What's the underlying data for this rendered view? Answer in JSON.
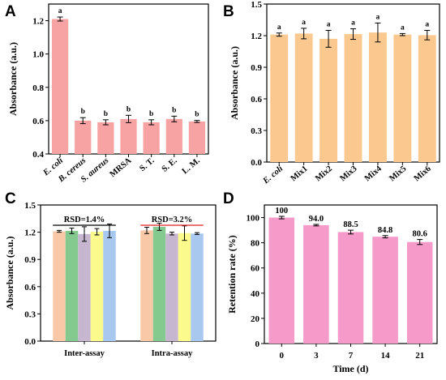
{
  "chart_data": [
    {
      "panel": "A",
      "type": "bar",
      "ylabel": "Absorbance (a.u.)",
      "ylim": [
        0.4,
        1.3
      ],
      "yticks": [
        "0.4",
        "0.6",
        "0.8",
        "1.0",
        "1.2"
      ],
      "categories": [
        "E. coli",
        "B. cereus",
        "S. aureus",
        "MRSA",
        "S. T.",
        "S. E.",
        "L. M."
      ],
      "italic_categories": [
        true,
        true,
        true,
        false,
        false,
        false,
        false
      ],
      "values": [
        1.21,
        0.6,
        0.59,
        0.61,
        0.59,
        0.61,
        0.595
      ],
      "errors": [
        0.012,
        0.018,
        0.015,
        0.022,
        0.015,
        0.017,
        0.006
      ],
      "significance": [
        "a",
        "b",
        "b",
        "b",
        "b",
        "b",
        "b"
      ],
      "color": "#f7a3a3",
      "grid": false
    },
    {
      "panel": "B",
      "type": "bar",
      "ylabel": "Absorbance (a.u.)",
      "ylim": [
        0.0,
        1.5
      ],
      "yticks": [
        "0.0",
        "0.3",
        "0.6",
        "0.9",
        "1.2",
        "1.5"
      ],
      "categories": [
        "E. coli",
        "Mix1",
        "Mix2",
        "Mix3",
        "Mix4",
        "Mix5",
        "Mix6"
      ],
      "italic_categories": [
        true,
        false,
        false,
        false,
        false,
        false,
        false
      ],
      "values": [
        1.21,
        1.22,
        1.17,
        1.215,
        1.23,
        1.21,
        1.205
      ],
      "errors": [
        0.015,
        0.05,
        0.08,
        0.05,
        0.09,
        0.01,
        0.045
      ],
      "significance": [
        "a",
        "a",
        "a",
        "a",
        "a",
        "a",
        "a"
      ],
      "color": "#fbc98f",
      "grid": false
    },
    {
      "panel": "C",
      "type": "bar",
      "ylabel": "Absorbance (a.u.)",
      "ylim": [
        0.0,
        1.5
      ],
      "yticks": [
        "0.0",
        "0.3",
        "0.6",
        "0.9",
        "1.2",
        "1.5"
      ],
      "categories": [
        "Inter-assay",
        "Intra-assay"
      ],
      "series": [
        {
          "values": [
            1.21,
            1.22
          ],
          "errors": [
            0.01,
            0.035
          ],
          "color": "#f9c8a6"
        },
        {
          "values": [
            1.215,
            1.26
          ],
          "errors": [
            0.03,
            0.04
          ],
          "color": "#84c98d"
        },
        {
          "values": [
            1.18,
            1.185
          ],
          "errors": [
            0.08,
            0.015
          ],
          "color": "#c6b6cf"
        },
        {
          "values": [
            1.205,
            1.19
          ],
          "errors": [
            0.035,
            0.08
          ],
          "color": "#fbfb8d"
        },
        {
          "values": [
            1.215,
            1.185
          ],
          "errors": [
            0.075,
            0.01
          ],
          "color": "#a9c8f0"
        }
      ],
      "annotations": [
        {
          "text": "RSD=1.4%",
          "line_color": "#000000"
        },
        {
          "text": "RSD=3.2%",
          "line_color": "#e02020"
        }
      ],
      "grid": false
    },
    {
      "panel": "D",
      "type": "bar",
      "xlabel": "Time (d)",
      "ylabel": "Retention rate (%)",
      "ylim": [
        0,
        110
      ],
      "yticks": [
        "0",
        "20",
        "40",
        "60",
        "80",
        "100"
      ],
      "categories": [
        "0",
        "3",
        "7",
        "14",
        "21"
      ],
      "values": [
        100,
        94.0,
        88.5,
        84.8,
        80.6
      ],
      "value_labels": [
        "100",
        "94.0",
        "88.5",
        "84.8",
        "80.6"
      ],
      "errors": [
        1.0,
        0.6,
        1.5,
        0.9,
        2.0
      ],
      "color": "#f59ac9",
      "grid": false
    }
  ]
}
